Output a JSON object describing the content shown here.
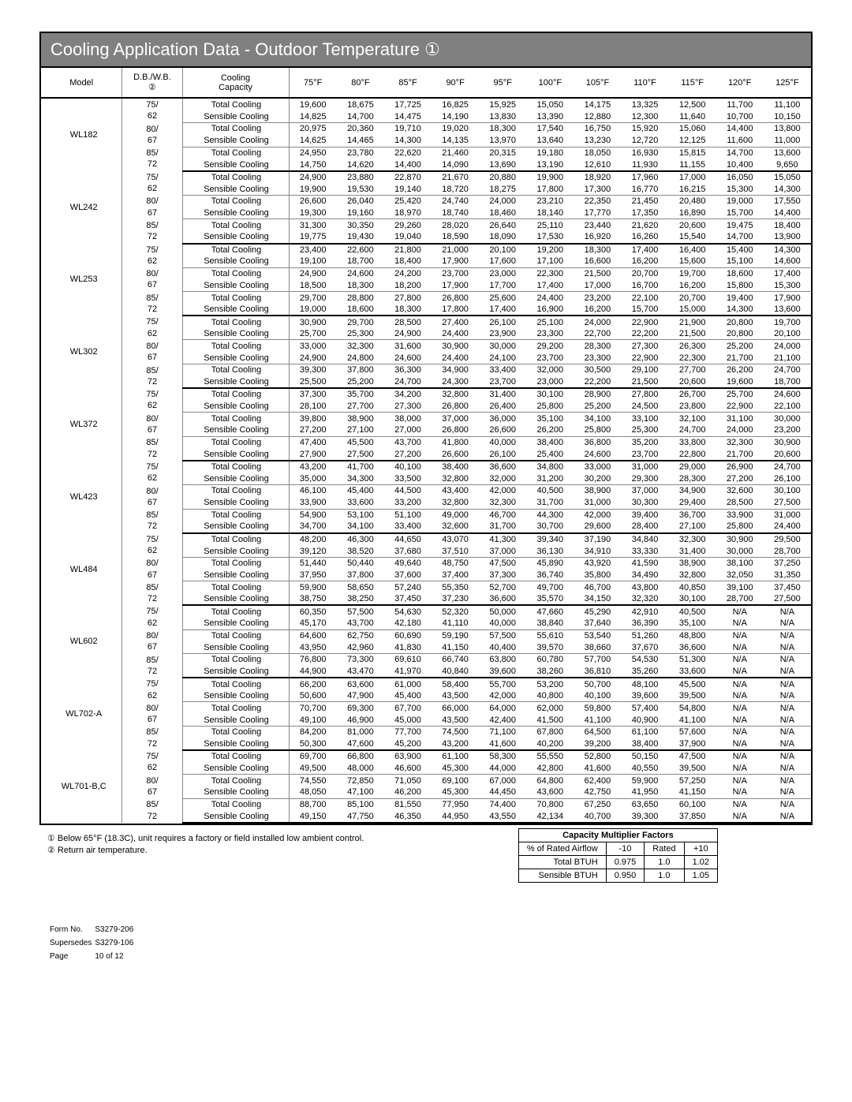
{
  "title": "Cooling Application Data - Outdoor Temperature ①",
  "headers": {
    "model": "Model",
    "dbwb": "D.B./W.B.\n②",
    "capacity": "Cooling\nCapacity",
    "temps": [
      "75°F",
      "80°F",
      "85°F",
      "90°F",
      "95°F",
      "100°F",
      "105°F",
      "110°F",
      "115°F",
      "120°F",
      "125°F"
    ]
  },
  "capacity_labels": {
    "total": "Total Cooling",
    "sensible": "Sensible Cooling"
  },
  "db_labels": [
    "75/\n62",
    "80/\n67",
    "85/\n72"
  ],
  "models": [
    {
      "name": "WL182",
      "rows": [
        [
          [
            "19,600",
            "18,675",
            "17,725",
            "16,825",
            "15,925",
            "15,050",
            "14,175",
            "13,325",
            "12,500",
            "11,700",
            "11,100"
          ],
          [
            "14,825",
            "14,700",
            "14,475",
            "14,190",
            "13,830",
            "13,390",
            "12,880",
            "12,300",
            "11,640",
            "10,700",
            "10,150"
          ]
        ],
        [
          [
            "20,975",
            "20,360",
            "19,710",
            "19,020",
            "18,300",
            "17,540",
            "16,750",
            "15,920",
            "15,060",
            "14,400",
            "13,800"
          ],
          [
            "14,625",
            "14,465",
            "14,300",
            "14,135",
            "13,970",
            "13,640",
            "13,230",
            "12,720",
            "12,125",
            "11,600",
            "11,000"
          ]
        ],
        [
          [
            "24,950",
            "23,780",
            "22,620",
            "21,460",
            "20,315",
            "19,180",
            "18,050",
            "16,930",
            "15,815",
            "14,700",
            "13,600"
          ],
          [
            "14,750",
            "14,620",
            "14,400",
            "14,090",
            "13,690",
            "13,190",
            "12,610",
            "11,930",
            "11,155",
            "10,400",
            "9,650"
          ]
        ]
      ]
    },
    {
      "name": "WL242",
      "rows": [
        [
          [
            "24,900",
            "23,880",
            "22,870",
            "21,670",
            "20,880",
            "19,900",
            "18,920",
            "17,960",
            "17,000",
            "16,050",
            "15,050"
          ],
          [
            "19,900",
            "19,530",
            "19,140",
            "18,720",
            "18,275",
            "17,800",
            "17,300",
            "16,770",
            "16,215",
            "15,300",
            "14,300"
          ]
        ],
        [
          [
            "26,600",
            "26,040",
            "25,420",
            "24,740",
            "24,000",
            "23,210",
            "22,350",
            "21,450",
            "20,480",
            "19,000",
            "17,550"
          ],
          [
            "19,300",
            "19,160",
            "18,970",
            "18,740",
            "18,460",
            "18,140",
            "17,770",
            "17,350",
            "16,890",
            "15,700",
            "14,400"
          ]
        ],
        [
          [
            "31,300",
            "30,350",
            "29,260",
            "28,020",
            "26,640",
            "25,110",
            "23,440",
            "21,620",
            "20,600",
            "19,475",
            "18,400"
          ],
          [
            "19,775",
            "19,430",
            "19,040",
            "18,590",
            "18,090",
            "17,530",
            "16,920",
            "16,260",
            "15,540",
            "14,700",
            "13,900"
          ]
        ]
      ]
    },
    {
      "name": "WL253",
      "rows": [
        [
          [
            "23,400",
            "22,600",
            "21,800",
            "21,000",
            "20,100",
            "19,200",
            "18,300",
            "17,400",
            "16,400",
            "15,400",
            "14,300"
          ],
          [
            "19,100",
            "18,700",
            "18,400",
            "17,900",
            "17,600",
            "17,100",
            "16,600",
            "16,200",
            "15,600",
            "15,100",
            "14,600"
          ]
        ],
        [
          [
            "24,900",
            "24,600",
            "24,200",
            "23,700",
            "23,000",
            "22,300",
            "21,500",
            "20,700",
            "19,700",
            "18,600",
            "17,400"
          ],
          [
            "18,500",
            "18,300",
            "18,200",
            "17,900",
            "17,700",
            "17,400",
            "17,000",
            "16,700",
            "16,200",
            "15,800",
            "15,300"
          ]
        ],
        [
          [
            "29,700",
            "28,800",
            "27,800",
            "26,800",
            "25,600",
            "24,400",
            "23,200",
            "22,100",
            "20,700",
            "19,400",
            "17,900"
          ],
          [
            "19,000",
            "18,600",
            "18,300",
            "17,800",
            "17,400",
            "16,900",
            "16,200",
            "15,700",
            "15,000",
            "14,300",
            "13,600"
          ]
        ]
      ]
    },
    {
      "name": "WL302",
      "rows": [
        [
          [
            "30,900",
            "29,700",
            "28,500",
            "27,400",
            "26,100",
            "25,100",
            "24,000",
            "22,900",
            "21,900",
            "20,800",
            "19,700"
          ],
          [
            "25,700",
            "25,300",
            "24,900",
            "24,400",
            "23,900",
            "23,300",
            "22,700",
            "22,200",
            "21,500",
            "20,800",
            "20,100"
          ]
        ],
        [
          [
            "33,000",
            "32,300",
            "31,600",
            "30,900",
            "30,000",
            "29,200",
            "28,300",
            "27,300",
            "26,300",
            "25,200",
            "24,000"
          ],
          [
            "24,900",
            "24,800",
            "24,600",
            "24,400",
            "24,100",
            "23,700",
            "23,300",
            "22,900",
            "22,300",
            "21,700",
            "21,100"
          ]
        ],
        [
          [
            "39,300",
            "37,800",
            "36,300",
            "34,900",
            "33,400",
            "32,000",
            "30,500",
            "29,100",
            "27,700",
            "26,200",
            "24,700"
          ],
          [
            "25,500",
            "25,200",
            "24,700",
            "24,300",
            "23,700",
            "23,000",
            "22,200",
            "21,500",
            "20,600",
            "19,600",
            "18,700"
          ]
        ]
      ]
    },
    {
      "name": "WL372",
      "rows": [
        [
          [
            "37,300",
            "35,700",
            "34,200",
            "32,800",
            "31,400",
            "30,100",
            "28,900",
            "27,800",
            "26,700",
            "25,700",
            "24,600"
          ],
          [
            "28,100",
            "27,700",
            "27,300",
            "26,800",
            "26,400",
            "25,800",
            "25,200",
            "24,500",
            "23,800",
            "22,900",
            "22,100"
          ]
        ],
        [
          [
            "39,800",
            "38,900",
            "38,000",
            "37,000",
            "36,000",
            "35,100",
            "34,100",
            "33,100",
            "32,100",
            "31,100",
            "30,000"
          ],
          [
            "27,200",
            "27,100",
            "27,000",
            "26,800",
            "26,600",
            "26,200",
            "25,800",
            "25,300",
            "24,700",
            "24,000",
            "23,200"
          ]
        ],
        [
          [
            "47,400",
            "45,500",
            "43,700",
            "41,800",
            "40,000",
            "38,400",
            "36,800",
            "35,200",
            "33,800",
            "32,300",
            "30,900"
          ],
          [
            "27,900",
            "27,500",
            "27,200",
            "26,600",
            "26,100",
            "25,400",
            "24,600",
            "23,700",
            "22,800",
            "21,700",
            "20,600"
          ]
        ]
      ]
    },
    {
      "name": "WL423",
      "rows": [
        [
          [
            "43,200",
            "41,700",
            "40,100",
            "38,400",
            "36,600",
            "34,800",
            "33,000",
            "31,000",
            "29,000",
            "26,900",
            "24,700"
          ],
          [
            "35,000",
            "34,300",
            "33,500",
            "32,800",
            "32,000",
            "31,200",
            "30,200",
            "29,300",
            "28,300",
            "27,200",
            "26,100"
          ]
        ],
        [
          [
            "46,100",
            "45,400",
            "44,500",
            "43,400",
            "42,000",
            "40,500",
            "38,900",
            "37,000",
            "34,900",
            "32,600",
            "30,100"
          ],
          [
            "33,900",
            "33,600",
            "33,200",
            "32,800",
            "32,300",
            "31,700",
            "31,000",
            "30,300",
            "29,400",
            "28,500",
            "27,500"
          ]
        ],
        [
          [
            "54,900",
            "53,100",
            "51,100",
            "49,000",
            "46,700",
            "44,300",
            "42,000",
            "39,400",
            "36,700",
            "33,900",
            "31,000"
          ],
          [
            "34,700",
            "34,100",
            "33,400",
            "32,600",
            "31,700",
            "30,700",
            "29,600",
            "28,400",
            "27,100",
            "25,800",
            "24,400"
          ]
        ]
      ]
    },
    {
      "name": "WL484",
      "rows": [
        [
          [
            "48,200",
            "46,300",
            "44,650",
            "43,070",
            "41,300",
            "39,340",
            "37,190",
            "34,840",
            "32,300",
            "30,900",
            "29,500"
          ],
          [
            "39,120",
            "38,520",
            "37,680",
            "37,510",
            "37,000",
            "36,130",
            "34,910",
            "33,330",
            "31,400",
            "30,000",
            "28,700"
          ]
        ],
        [
          [
            "51,440",
            "50,440",
            "49,640",
            "48,750",
            "47,500",
            "45,890",
            "43,920",
            "41,590",
            "38,900",
            "38,100",
            "37,250"
          ],
          [
            "37,950",
            "37,800",
            "37,600",
            "37,400",
            "37,300",
            "36,740",
            "35,800",
            "34,490",
            "32,800",
            "32,050",
            "31,350"
          ]
        ],
        [
          [
            "59,900",
            "58,650",
            "57,240",
            "55,350",
            "52,700",
            "49,700",
            "46,700",
            "43,800",
            "40,850",
            "39,100",
            "37,450"
          ],
          [
            "38,750",
            "38,250",
            "37,450",
            "37,230",
            "36,600",
            "35,570",
            "34,150",
            "32,320",
            "30,100",
            "28,700",
            "27,500"
          ]
        ]
      ]
    },
    {
      "name": "WL602",
      "rows": [
        [
          [
            "60,350",
            "57,500",
            "54,630",
            "52,320",
            "50,000",
            "47,660",
            "45,290",
            "42,910",
            "40,500",
            "N/A",
            "N/A"
          ],
          [
            "45,170",
            "43,700",
            "42,180",
            "41,110",
            "40,000",
            "38,840",
            "37,640",
            "36,390",
            "35,100",
            "N/A",
            "N/A"
          ]
        ],
        [
          [
            "64,600",
            "62,750",
            "60,690",
            "59,190",
            "57,500",
            "55,610",
            "53,540",
            "51,260",
            "48,800",
            "N/A",
            "N/A"
          ],
          [
            "43,950",
            "42,960",
            "41,830",
            "41,150",
            "40,400",
            "39,570",
            "38,660",
            "37,670",
            "36,600",
            "N/A",
            "N/A"
          ]
        ],
        [
          [
            "76,800",
            "73,300",
            "69,610",
            "66,740",
            "63,800",
            "60,780",
            "57,700",
            "54,530",
            "51,300",
            "N/A",
            "N/A"
          ],
          [
            "44,900",
            "43,470",
            "41,970",
            "40,840",
            "39,600",
            "38,260",
            "36,810",
            "35,260",
            "33,600",
            "N/A",
            "N/A"
          ]
        ]
      ]
    },
    {
      "name": "WL702-A",
      "rows": [
        [
          [
            "66,200",
            "63,600",
            "61,000",
            "58,400",
            "55,700",
            "53,200",
            "50,700",
            "48,100",
            "45,500",
            "N/A",
            "N/A"
          ],
          [
            "50,600",
            "47,900",
            "45,400",
            "43,500",
            "42,000",
            "40,800",
            "40,100",
            "39,600",
            "39,500",
            "N/A",
            "N/A"
          ]
        ],
        [
          [
            "70,700",
            "69,300",
            "67,700",
            "66,000",
            "64,000",
            "62,000",
            "59,800",
            "57,400",
            "54,800",
            "N/A",
            "N/A"
          ],
          [
            "49,100",
            "46,900",
            "45,000",
            "43,500",
            "42,400",
            "41,500",
            "41,100",
            "40,900",
            "41,100",
            "N/A",
            "N/A"
          ]
        ],
        [
          [
            "84,200",
            "81,000",
            "77,700",
            "74,500",
            "71,100",
            "67,800",
            "64,500",
            "61,100",
            "57,600",
            "N/A",
            "N/A"
          ],
          [
            "50,300",
            "47,600",
            "45,200",
            "43,200",
            "41,600",
            "40,200",
            "39,200",
            "38,400",
            "37,900",
            "N/A",
            "N/A"
          ]
        ]
      ]
    },
    {
      "name": "WL701-B,C",
      "rows": [
        [
          [
            "69,700",
            "66,800",
            "63,900",
            "61,100",
            "58,300",
            "55,550",
            "52,800",
            "50,150",
            "47,500",
            "N/A",
            "N/A"
          ],
          [
            "49,500",
            "48,000",
            "46,600",
            "45,300",
            "44,000",
            "42,800",
            "41,600",
            "40,550",
            "39,500",
            "N/A",
            "N/A"
          ]
        ],
        [
          [
            "74,550",
            "72,850",
            "71,050",
            "69,100",
            "67,000",
            "64,800",
            "62,400",
            "59,900",
            "57,250",
            "N/A",
            "N/A"
          ],
          [
            "48,050",
            "47,100",
            "46,200",
            "45,300",
            "44,450",
            "43,600",
            "42,750",
            "41,950",
            "41,150",
            "N/A",
            "N/A"
          ]
        ],
        [
          [
            "88,700",
            "85,100",
            "81,550",
            "77,950",
            "74,400",
            "70,800",
            "67,250",
            "63,650",
            "60,100",
            "N/A",
            "N/A"
          ],
          [
            "49,150",
            "47,750",
            "46,350",
            "44,950",
            "43,550",
            "42,134",
            "40,700",
            "39,300",
            "37,850",
            "N/A",
            "N/A"
          ]
        ]
      ]
    }
  ],
  "notes": {
    "note1": "① Below 65°F (18.3C), unit requires a factory or field installed low ambient control.",
    "note2": "② Return air temperature."
  },
  "cmf": {
    "title": "Capacity Multiplier Factors",
    "col_header": "% of Rated Airflow",
    "cols": [
      "-10",
      "Rated",
      "+10"
    ],
    "rows": [
      {
        "label": "Total BTUH",
        "vals": [
          "0.975",
          "1.0",
          "1.02"
        ]
      },
      {
        "label": "Sensible BTUH",
        "vals": [
          "0.950",
          "1.0",
          "1.05"
        ]
      }
    ]
  },
  "footer": {
    "form_label": "Form No.",
    "form": "S3279-206",
    "super_label": "Supersedes",
    "super": "S3279-106",
    "page_label": "Page",
    "page": "10 of 12"
  }
}
